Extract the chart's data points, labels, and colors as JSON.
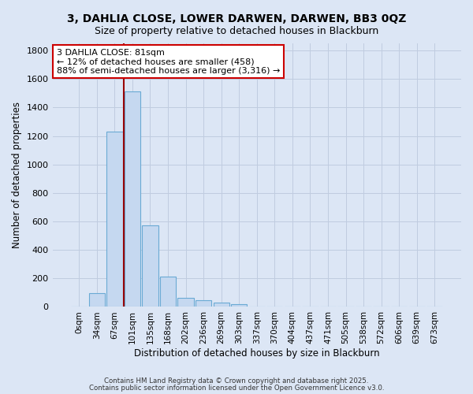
{
  "title": "3, DAHLIA CLOSE, LOWER DARWEN, DARWEN, BB3 0QZ",
  "subtitle": "Size of property relative to detached houses in Blackburn",
  "xlabel": "Distribution of detached houses by size in Blackburn",
  "ylabel": "Number of detached properties",
  "bar_labels": [
    "0sqm",
    "34sqm",
    "67sqm",
    "101sqm",
    "135sqm",
    "168sqm",
    "202sqm",
    "236sqm",
    "269sqm",
    "303sqm",
    "337sqm",
    "370sqm",
    "404sqm",
    "437sqm",
    "471sqm",
    "505sqm",
    "538sqm",
    "572sqm",
    "606sqm",
    "639sqm",
    "673sqm"
  ],
  "bar_values": [
    0,
    95,
    1230,
    1510,
    570,
    210,
    65,
    45,
    28,
    18,
    5,
    0,
    0,
    0,
    0,
    0,
    0,
    0,
    0,
    0,
    0
  ],
  "bar_color": "#c5d8f0",
  "bar_edge_color": "#6aaad4",
  "vline_x": 2.5,
  "vline_color": "#990000",
  "annotation_title": "3 DAHLIA CLOSE: 81sqm",
  "annotation_line1": "← 12% of detached houses are smaller (458)",
  "annotation_line2": "88% of semi-detached houses are larger (3,316) →",
  "annotation_box_color": "white",
  "annotation_box_edge_color": "#cc0000",
  "ylim": [
    0,
    1850
  ],
  "yticks": [
    0,
    200,
    400,
    600,
    800,
    1000,
    1200,
    1400,
    1600,
    1800
  ],
  "bg_color": "#dce6f5",
  "plot_bg_color": "#dce6f5",
  "grid_color": "#c0cce0",
  "footer1": "Contains HM Land Registry data © Crown copyright and database right 2025.",
  "footer2": "Contains public sector information licensed under the Open Government Licence v3.0.",
  "title_fontsize": 10,
  "subtitle_fontsize": 9,
  "xlabel_fontsize": 8.5,
  "ylabel_fontsize": 8.5
}
